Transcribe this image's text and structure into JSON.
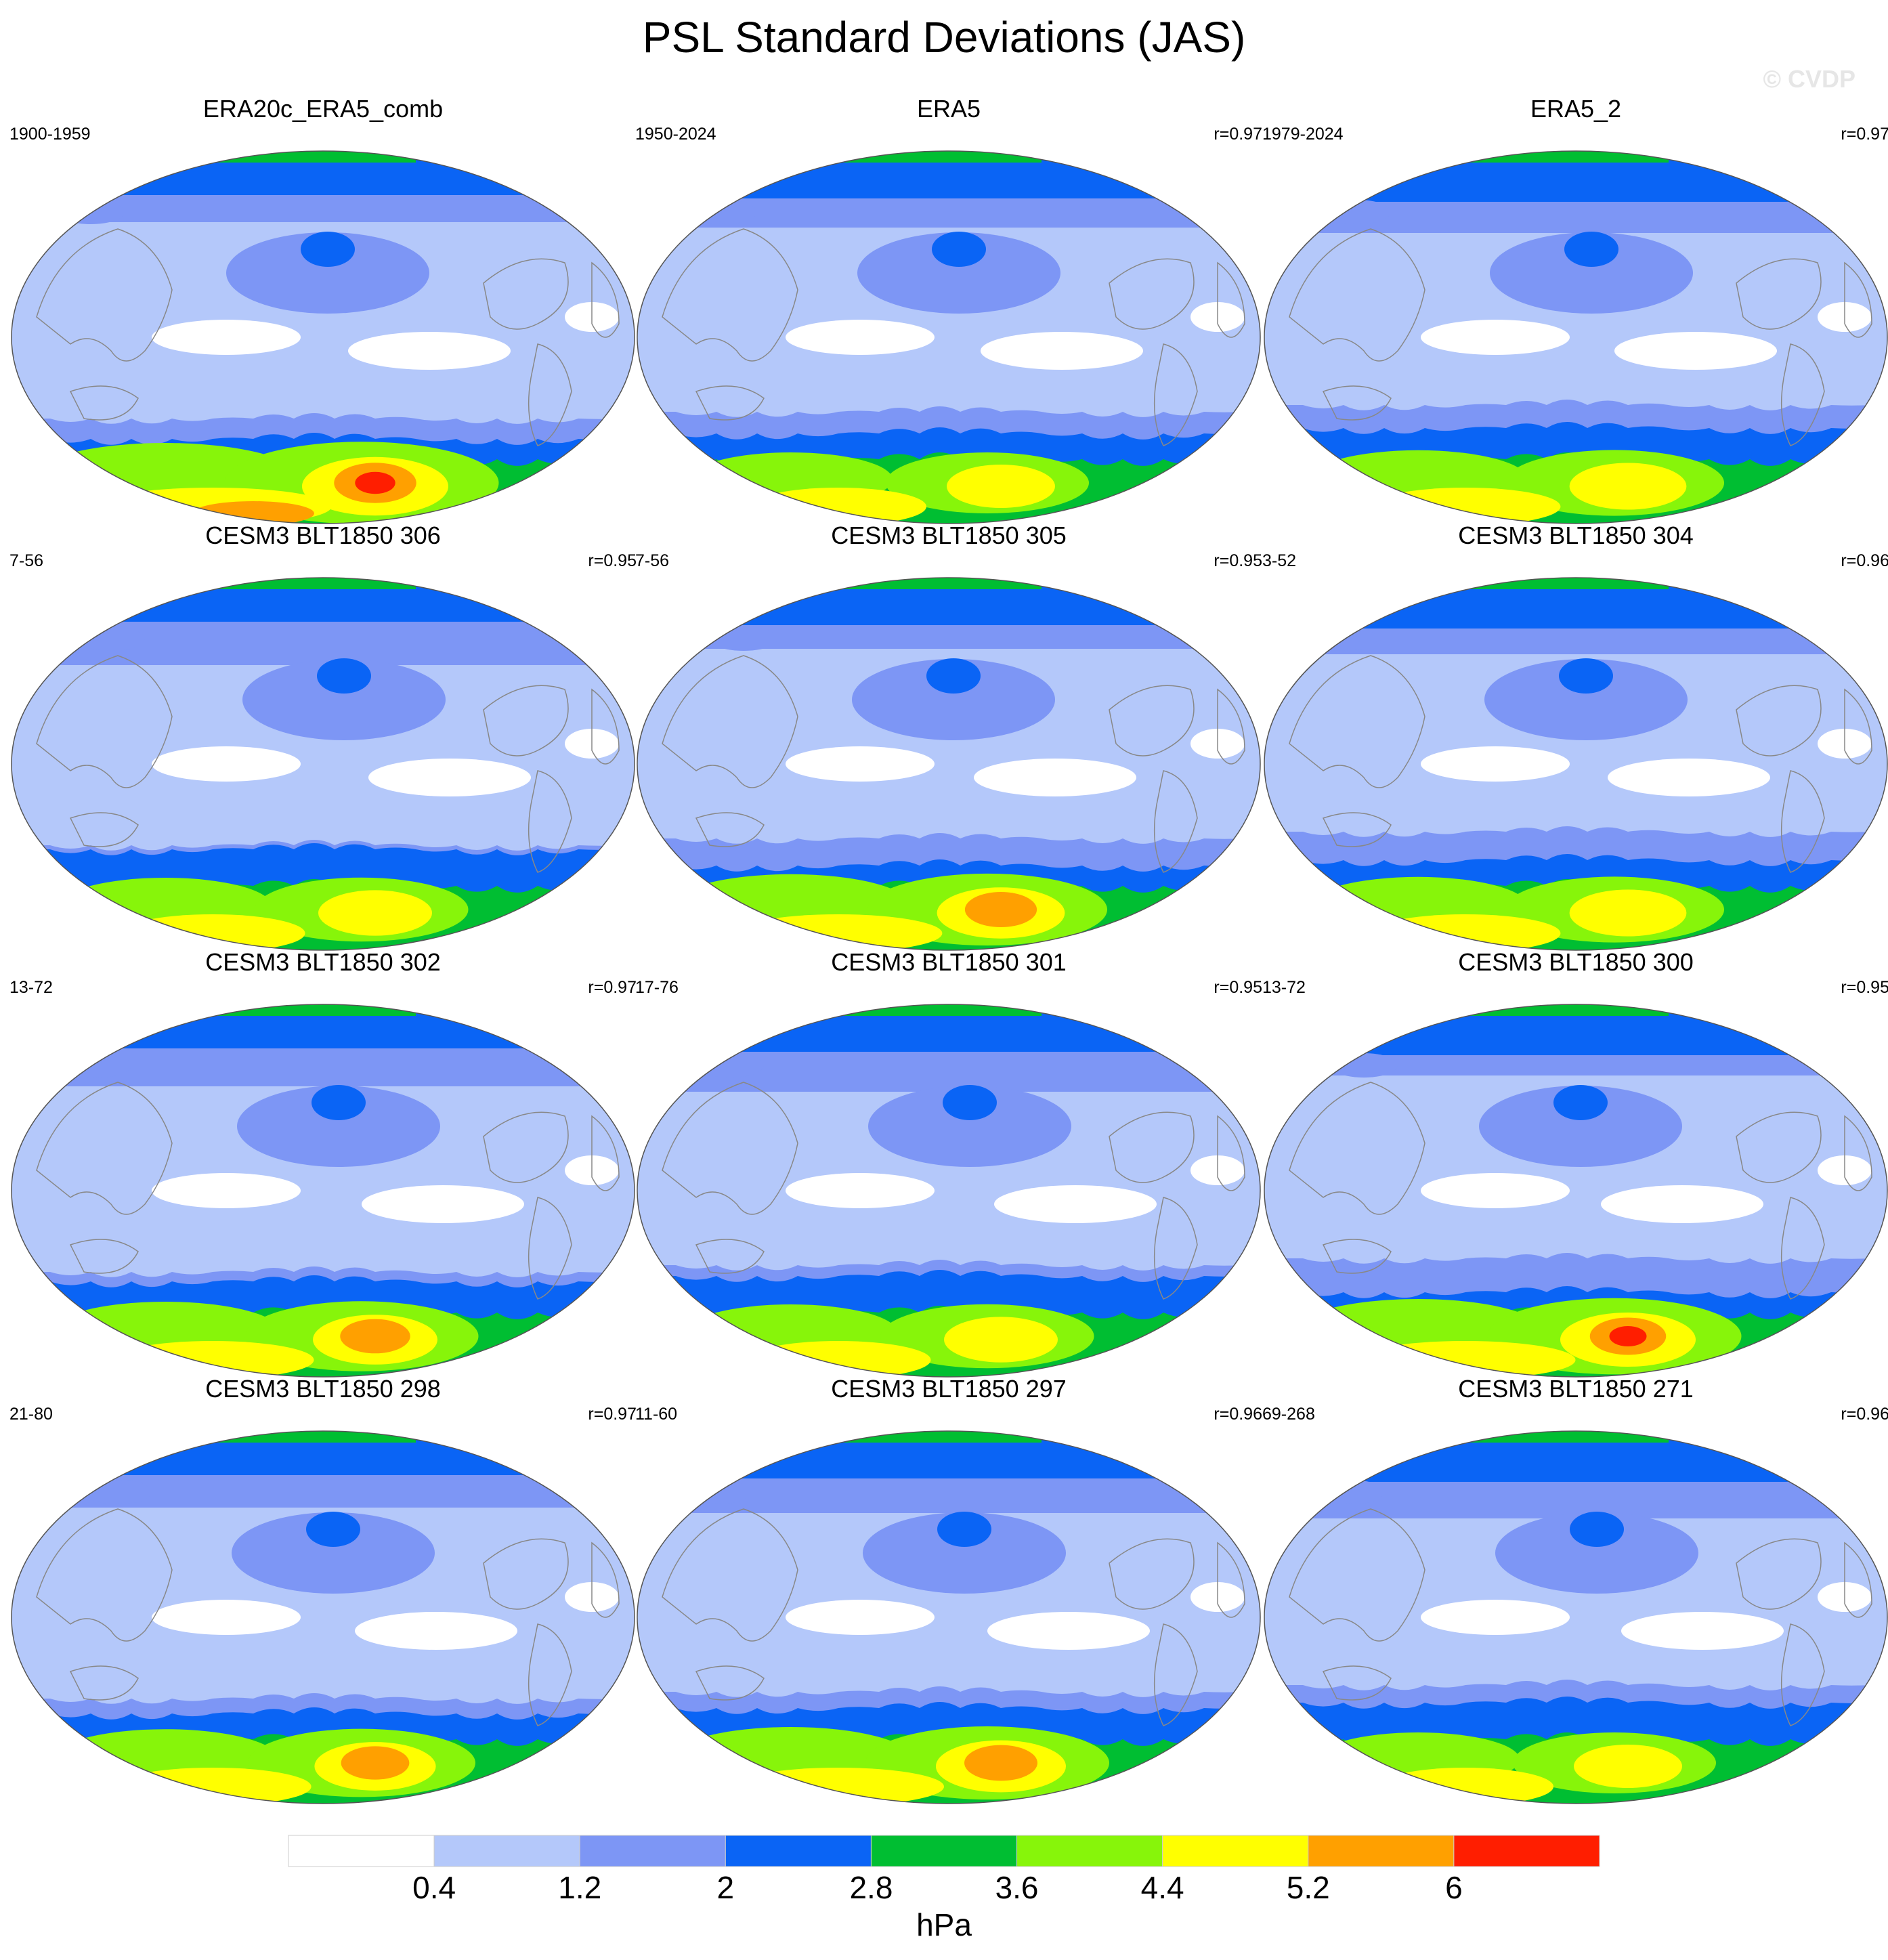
{
  "title": "PSL Standard Deviations (JAS)",
  "watermark": "© CVDP",
  "colorbar": {
    "units": "hPa",
    "tick_labels": [
      "0.4",
      "1.2",
      "2",
      "2.8",
      "3.6",
      "4.4",
      "5.2",
      "6"
    ],
    "colors": [
      "#ffffff",
      "#b4c8fa",
      "#7d96f5",
      "#0a64f5",
      "#00be32",
      "#87f50a",
      "#ffff00",
      "#ffa000",
      "#ff1e00"
    ]
  },
  "panels": [
    {
      "title": "ERA20c_ERA5_comb",
      "years": "1900-1959",
      "corr": "",
      "intensity": 1.35
    },
    {
      "title": "ERA5",
      "years": "1950-2024",
      "corr": "r=0.97",
      "intensity": 1.0
    },
    {
      "title": "ERA5_2",
      "years": "1979-2024",
      "corr": "r=0.97",
      "intensity": 1.08
    },
    {
      "title": "CESM3 BLT1850 306",
      "years": "7-56",
      "corr": "r=0.95",
      "intensity": 1.05
    },
    {
      "title": "CESM3 BLT1850 305",
      "years": "7-56",
      "corr": "r=0.95",
      "intensity": 1.18
    },
    {
      "title": "CESM3 BLT1850 304",
      "years": "3-52",
      "corr": "r=0.96",
      "intensity": 1.08
    },
    {
      "title": "CESM3 BLT1850 302",
      "years": "13-72",
      "corr": "r=0.97",
      "intensity": 1.15
    },
    {
      "title": "CESM3 BLT1850 301",
      "years": "17-76",
      "corr": "r=0.95",
      "intensity": 1.05
    },
    {
      "title": "CESM3 BLT1850 300",
      "years": "13-72",
      "corr": "r=0.95",
      "intensity": 1.25
    },
    {
      "title": "CESM3 BLT1850 298",
      "years": "21-80",
      "corr": "r=0.97",
      "intensity": 1.12
    },
    {
      "title": "CESM3 BLT1850 297",
      "years": "11-60",
      "corr": "r=0.96",
      "intensity": 1.2
    },
    {
      "title": "CESM3 BLT1850 271",
      "years": "69-268",
      "corr": "r=0.96",
      "intensity": 1.0
    }
  ]
}
